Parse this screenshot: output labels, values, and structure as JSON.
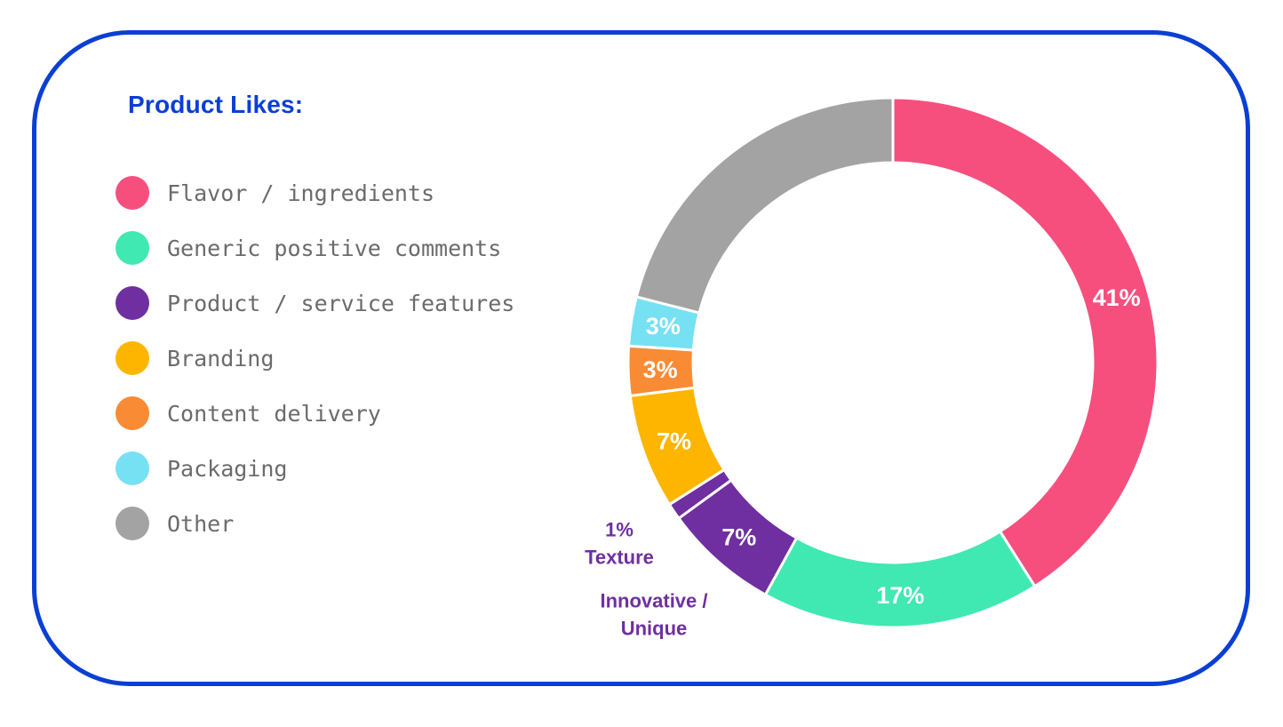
{
  "title": "Product Likes:",
  "legend": [
    {
      "label": "Flavor / ingredients",
      "color": "#f64f7e"
    },
    {
      "label": "Generic positive comments",
      "color": "#40e8b2"
    },
    {
      "label": "Product / service features",
      "color": "#6f2fa0"
    },
    {
      "label": "Branding",
      "color": "#fdb500"
    },
    {
      "label": "Content delivery",
      "color": "#f98b35"
    },
    {
      "label": "Packaging",
      "color": "#76e1f2"
    },
    {
      "label": "Other",
      "color": "#a3a3a3"
    }
  ],
  "chart_data": {
    "type": "pie",
    "donut": true,
    "title": "Product Likes:",
    "slices": [
      {
        "category": "Flavor / ingredients",
        "value": 41,
        "label": "41%",
        "color": "#f64f7e",
        "label_color": "#ffffff"
      },
      {
        "category": "Generic positive comments",
        "value": 17,
        "label": "17%",
        "color": "#40e8b2",
        "label_color": "#ffffff"
      },
      {
        "category": "Product / service features",
        "sublabel": "Innovative / Unique",
        "value": 7,
        "label": "7%",
        "color": "#6f2fa0",
        "label_color": "#ffffff"
      },
      {
        "category": "Product / service features",
        "sublabel": "Texture",
        "value": 1,
        "label": "1%",
        "color": "#6f2fa0",
        "label_color": "#6f2fa0"
      },
      {
        "category": "Branding",
        "value": 7,
        "label": "7%",
        "color": "#fdb500",
        "label_color": "#ffffff"
      },
      {
        "category": "Content delivery",
        "value": 3,
        "label": "3%",
        "color": "#f98b35",
        "label_color": "#ffffff"
      },
      {
        "category": "Packaging",
        "value": 3,
        "label": "3%",
        "color": "#76e1f2",
        "label_color": "#ffffff"
      },
      {
        "category": "Other",
        "value": 21,
        "label": "",
        "color": "#a3a3a3",
        "label_color": "#ffffff"
      }
    ],
    "annotations": {
      "texture_pct": "1%",
      "texture_name": "Texture",
      "innovative_line1": "Innovative /",
      "innovative_line2": "Unique"
    },
    "accent_color": "#0a3fd4"
  }
}
